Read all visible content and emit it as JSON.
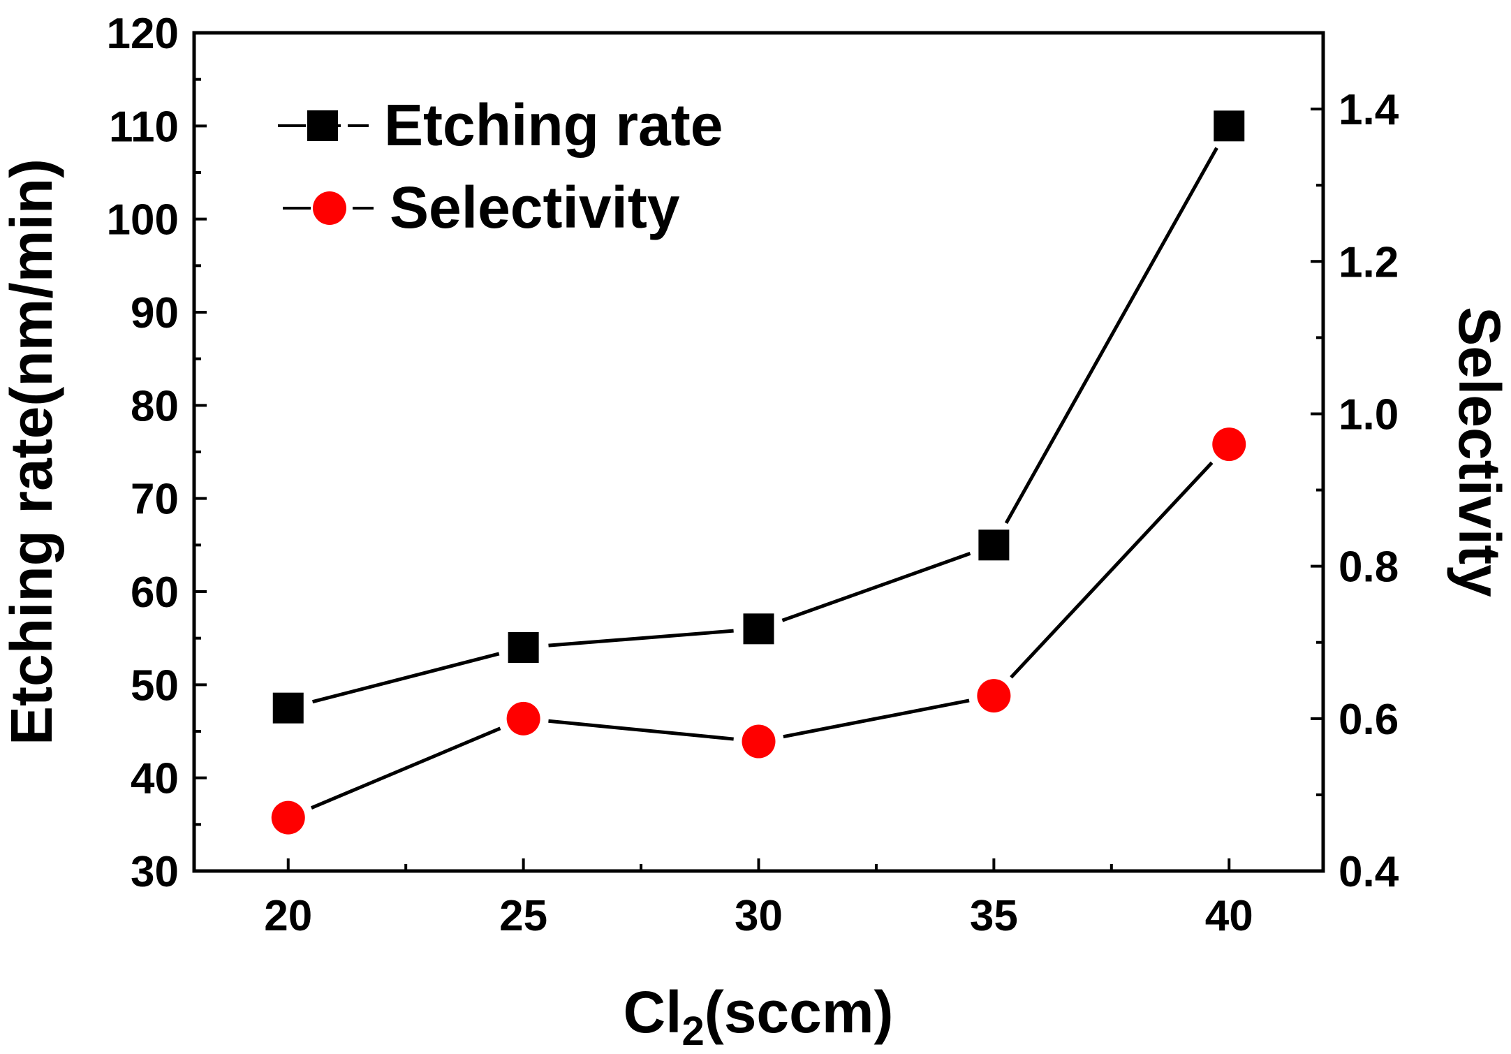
{
  "chart_data": {
    "type": "line",
    "x": [
      20,
      25,
      30,
      35,
      40
    ],
    "xlabel": {
      "main": "Cl",
      "sub": "2",
      "rest": "(sccm)"
    },
    "ylabel": "Etching rate(nm/min)",
    "y2label": "Selectivity",
    "xlim": [
      18,
      42
    ],
    "ylim": [
      30,
      120
    ],
    "y2lim": [
      0.4,
      1.5
    ],
    "xticks": [
      20,
      25,
      30,
      35,
      40
    ],
    "yticks": [
      30,
      40,
      50,
      60,
      70,
      80,
      90,
      100,
      110,
      120
    ],
    "y2ticks": [
      0.4,
      0.6,
      0.8,
      1.0,
      1.2,
      1.4
    ],
    "y2tick_labels": [
      "0.4",
      "0.6",
      "0.8",
      "1.0",
      "1.2",
      "1.4"
    ],
    "grid": false,
    "legend_position": "top-left",
    "series": [
      {
        "name": "Etching rate",
        "axis": "left",
        "marker": "square",
        "color": "#000000",
        "values": [
          47.5,
          54,
          56,
          65,
          110
        ]
      },
      {
        "name": "Selectivity",
        "axis": "right",
        "marker": "circle",
        "color": "#ff0000",
        "values": [
          0.47,
          0.6,
          0.57,
          0.63,
          0.96
        ]
      }
    ]
  }
}
